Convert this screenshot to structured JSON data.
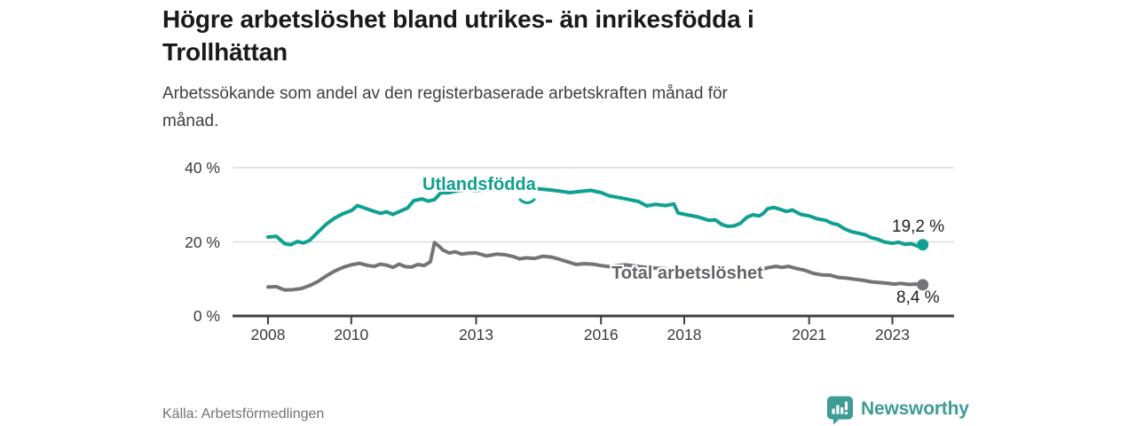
{
  "header": {
    "title_lines": [
      "Högre arbetslöshet bland utrikes- än inrikesfödda i",
      "Trollhättan"
    ],
    "subtitle_lines": [
      "Arbetssökande som andel av den registerbaserade arbetskraften månad för",
      "månad."
    ]
  },
  "footer": {
    "source": "Källa: Arbetsförmedlingen",
    "brand": "Newsworthy",
    "brand_color": "#3f9b95"
  },
  "chart_data": {
    "type": "line",
    "title": "Högre arbetslöshet bland utrikes- än inrikesfödda i Trollhättan",
    "subtitle": "Arbetssökande som andel av den registerbaserade arbetskraften månad för månad.",
    "unit": "%",
    "ylim": [
      0,
      40
    ],
    "x_range": [
      2007.15,
      2024.5
    ],
    "grid": "horizontal-only",
    "legend_position": "inline-labels",
    "source": "Källa: Arbetsförmedlingen",
    "colors": {
      "grid": "#d9d9d9",
      "axis": "#3f3f3f",
      "tick_text": "#3a3a3a"
    },
    "y_ticks": [
      {
        "value": 0,
        "label": "0 %"
      },
      {
        "value": 20,
        "label": "20 %"
      },
      {
        "value": 40,
        "label": "40 %"
      }
    ],
    "x_ticks": [
      {
        "year": 2008,
        "label": "2008"
      },
      {
        "year": 2010,
        "label": "2010"
      },
      {
        "year": 2013,
        "label": "2013"
      },
      {
        "year": 2016,
        "label": "2016"
      },
      {
        "year": 2018,
        "label": "2018"
      },
      {
        "year": 2021,
        "label": "2021"
      },
      {
        "year": 2023,
        "label": "2023"
      }
    ],
    "series": [
      {
        "name": "Utlandsfödda",
        "color": "#0fa092",
        "label_color": "#0f9e90",
        "end_label": "19,2 %",
        "end_value": 19.2,
        "points": [
          [
            2008.0,
            21.3
          ],
          [
            2008.2,
            21.5
          ],
          [
            2008.4,
            19.5
          ],
          [
            2008.55,
            19.2
          ],
          [
            2008.7,
            20.1
          ],
          [
            2008.85,
            19.7
          ],
          [
            2009.0,
            20.4
          ],
          [
            2009.2,
            22.6
          ],
          [
            2009.4,
            24.8
          ],
          [
            2009.6,
            26.4
          ],
          [
            2009.8,
            27.6
          ],
          [
            2010.0,
            28.4
          ],
          [
            2010.15,
            29.8
          ],
          [
            2010.3,
            29.2
          ],
          [
            2010.5,
            28.4
          ],
          [
            2010.7,
            27.7
          ],
          [
            2010.85,
            28.1
          ],
          [
            2011.0,
            27.4
          ],
          [
            2011.2,
            28.4
          ],
          [
            2011.35,
            29.1
          ],
          [
            2011.5,
            31.1
          ],
          [
            2011.7,
            31.6
          ],
          [
            2011.85,
            31.0
          ],
          [
            2012.0,
            31.4
          ],
          [
            2012.15,
            33.2
          ],
          [
            2012.35,
            33.3
          ],
          [
            2012.55,
            33.8
          ],
          [
            2012.8,
            34.1
          ],
          [
            2013.0,
            33.9
          ],
          [
            2013.3,
            34.1
          ],
          [
            2013.6,
            34.3
          ],
          [
            2013.9,
            34.1
          ],
          [
            2014.2,
            34.4
          ],
          [
            2014.5,
            34.3
          ],
          [
            2014.8,
            34.0
          ],
          [
            2015.0,
            33.7
          ],
          [
            2015.25,
            33.3
          ],
          [
            2015.5,
            33.6
          ],
          [
            2015.75,
            33.9
          ],
          [
            2016.0,
            33.3
          ],
          [
            2016.2,
            32.4
          ],
          [
            2016.5,
            31.8
          ],
          [
            2016.9,
            30.9
          ],
          [
            2017.1,
            29.7
          ],
          [
            2017.3,
            30.1
          ],
          [
            2017.55,
            29.8
          ],
          [
            2017.75,
            30.2
          ],
          [
            2017.85,
            27.8
          ],
          [
            2018.1,
            27.2
          ],
          [
            2018.3,
            26.8
          ],
          [
            2018.6,
            25.8
          ],
          [
            2018.75,
            25.9
          ],
          [
            2018.9,
            24.7
          ],
          [
            2019.05,
            24.2
          ],
          [
            2019.2,
            24.3
          ],
          [
            2019.35,
            25.0
          ],
          [
            2019.5,
            26.6
          ],
          [
            2019.65,
            27.3
          ],
          [
            2019.8,
            27.0
          ],
          [
            2019.9,
            27.7
          ],
          [
            2020.0,
            28.9
          ],
          [
            2020.15,
            29.3
          ],
          [
            2020.3,
            28.8
          ],
          [
            2020.45,
            28.2
          ],
          [
            2020.6,
            28.6
          ],
          [
            2020.8,
            27.4
          ],
          [
            2021.0,
            27.0
          ],
          [
            2021.2,
            26.2
          ],
          [
            2021.4,
            25.8
          ],
          [
            2021.55,
            25.0
          ],
          [
            2021.7,
            24.6
          ],
          [
            2021.85,
            23.5
          ],
          [
            2022.0,
            22.8
          ],
          [
            2022.2,
            22.3
          ],
          [
            2022.35,
            21.9
          ],
          [
            2022.5,
            21.1
          ],
          [
            2022.65,
            20.7
          ],
          [
            2022.8,
            20.0
          ],
          [
            2023.0,
            19.6
          ],
          [
            2023.15,
            19.9
          ],
          [
            2023.3,
            19.3
          ],
          [
            2023.45,
            19.5
          ],
          [
            2023.6,
            18.9
          ],
          [
            2023.73,
            19.2
          ]
        ]
      },
      {
        "name": "Total arbetslöshet",
        "color": "#737477",
        "label_color": "#616468",
        "end_label": "8,4 %",
        "end_value": 8.4,
        "points": [
          [
            2008.0,
            7.8
          ],
          [
            2008.2,
            7.9
          ],
          [
            2008.4,
            7.0
          ],
          [
            2008.6,
            7.1
          ],
          [
            2008.8,
            7.4
          ],
          [
            2009.0,
            8.2
          ],
          [
            2009.2,
            9.3
          ],
          [
            2009.4,
            10.8
          ],
          [
            2009.6,
            12.1
          ],
          [
            2009.8,
            13.1
          ],
          [
            2010.0,
            13.8
          ],
          [
            2010.2,
            14.2
          ],
          [
            2010.4,
            13.6
          ],
          [
            2010.55,
            13.4
          ],
          [
            2010.7,
            14.0
          ],
          [
            2010.85,
            13.7
          ],
          [
            2011.0,
            13.1
          ],
          [
            2011.15,
            14.0
          ],
          [
            2011.3,
            13.3
          ],
          [
            2011.45,
            13.2
          ],
          [
            2011.6,
            13.9
          ],
          [
            2011.75,
            13.6
          ],
          [
            2011.9,
            14.6
          ],
          [
            2012.0,
            19.8
          ],
          [
            2012.1,
            18.9
          ],
          [
            2012.2,
            17.8
          ],
          [
            2012.35,
            17.0
          ],
          [
            2012.5,
            17.3
          ],
          [
            2012.65,
            16.7
          ],
          [
            2012.8,
            16.9
          ],
          [
            2013.0,
            17.0
          ],
          [
            2013.25,
            16.2
          ],
          [
            2013.5,
            16.7
          ],
          [
            2013.7,
            16.5
          ],
          [
            2013.9,
            16.0
          ],
          [
            2014.05,
            15.4
          ],
          [
            2014.2,
            15.7
          ],
          [
            2014.4,
            15.5
          ],
          [
            2014.6,
            16.1
          ],
          [
            2014.8,
            15.9
          ],
          [
            2015.0,
            15.3
          ],
          [
            2015.2,
            14.6
          ],
          [
            2015.4,
            13.9
          ],
          [
            2015.6,
            14.1
          ],
          [
            2015.8,
            14.0
          ],
          [
            2016.0,
            13.6
          ],
          [
            2016.2,
            13.3
          ],
          [
            2016.4,
            13.6
          ],
          [
            2016.6,
            13.8
          ],
          [
            2016.8,
            13.5
          ],
          [
            2017.0,
            13.2
          ],
          [
            2017.3,
            12.9
          ],
          [
            2017.6,
            12.7
          ],
          [
            2017.9,
            12.5
          ],
          [
            2018.2,
            12.3
          ],
          [
            2018.5,
            12.1
          ],
          [
            2018.8,
            11.8
          ],
          [
            2019.0,
            11.6
          ],
          [
            2019.3,
            11.5
          ],
          [
            2019.6,
            11.8
          ],
          [
            2019.8,
            12.3
          ],
          [
            2020.0,
            13.0
          ],
          [
            2020.2,
            13.4
          ],
          [
            2020.35,
            13.1
          ],
          [
            2020.5,
            13.4
          ],
          [
            2020.7,
            12.8
          ],
          [
            2020.9,
            12.3
          ],
          [
            2021.1,
            11.5
          ],
          [
            2021.3,
            11.1
          ],
          [
            2021.5,
            11.0
          ],
          [
            2021.7,
            10.4
          ],
          [
            2021.9,
            10.2
          ],
          [
            2022.1,
            9.9
          ],
          [
            2022.3,
            9.6
          ],
          [
            2022.5,
            9.2
          ],
          [
            2022.7,
            9.0
          ],
          [
            2022.9,
            8.8
          ],
          [
            2023.05,
            8.6
          ],
          [
            2023.2,
            8.8
          ],
          [
            2023.4,
            8.5
          ],
          [
            2023.55,
            8.6
          ],
          [
            2023.73,
            8.4
          ]
        ]
      }
    ]
  }
}
